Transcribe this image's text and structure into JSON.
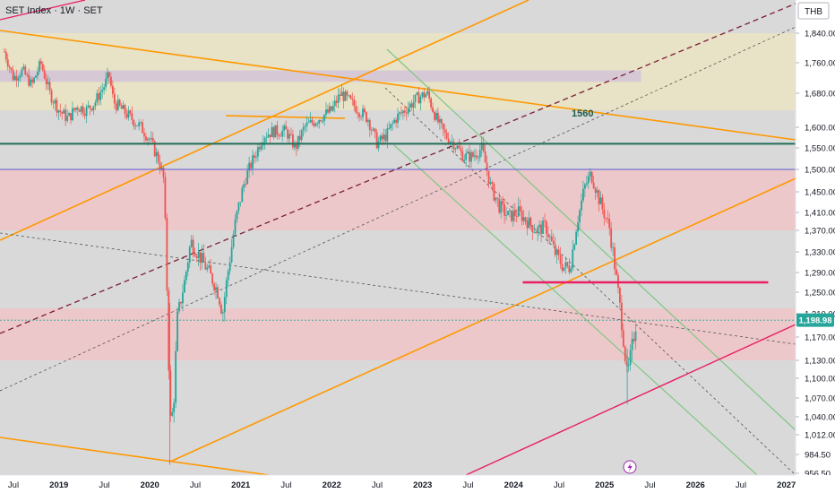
{
  "header": {
    "title": "SET Index · 1W · SET",
    "currency": "THB"
  },
  "last_price": "1,198.98",
  "annotation_1560": "1560",
  "colors": {
    "up": "#26a69a",
    "down": "#ef5350",
    "orange": "#ff9800",
    "red_line": "#e91e63",
    "green_line": "#1e6e58",
    "channel": "#81c784",
    "tag": "#26a69a"
  },
  "chart_data": {
    "type": "candlestick",
    "title": "SET Index · 1W · SET",
    "y_ticks": [
      "1,840.00",
      "1,760.00",
      "1,680.00",
      "1,600.00",
      "1,550.00",
      "1,500.00",
      "1,450.00",
      "1,410.00",
      "1,370.00",
      "1,330.00",
      "1,290.00",
      "1,250.00",
      "1,210.00",
      "1,170.00",
      "1,130.00",
      "1,100.00",
      "1,070.00",
      "1,040.00",
      "1,012.00",
      "984.50",
      "956.50"
    ],
    "y_tick_values": [
      1840,
      1760,
      1680,
      1600,
      1550,
      1500,
      1450,
      1410,
      1370,
      1330,
      1290,
      1250,
      1210,
      1170,
      1130,
      1100,
      1070,
      1040,
      1012,
      984.5,
      956.5
    ],
    "x_ticks": [
      {
        "label": "Jul",
        "year": false,
        "t": 2018.5
      },
      {
        "label": "2019",
        "year": true,
        "t": 2019.0
      },
      {
        "label": "Jul",
        "year": false,
        "t": 2019.5
      },
      {
        "label": "2020",
        "year": true,
        "t": 2020.0
      },
      {
        "label": "Jul",
        "year": false,
        "t": 2020.5
      },
      {
        "label": "2021",
        "year": true,
        "t": 2021.0
      },
      {
        "label": "Jul",
        "year": false,
        "t": 2021.5
      },
      {
        "label": "2022",
        "year": true,
        "t": 2022.0
      },
      {
        "label": "Jul",
        "year": false,
        "t": 2022.5
      },
      {
        "label": "2023",
        "year": true,
        "t": 2023.0
      },
      {
        "label": "Jul",
        "year": false,
        "t": 2023.5
      },
      {
        "label": "2024",
        "year": true,
        "t": 2024.0
      },
      {
        "label": "Jul",
        "year": false,
        "t": 2024.5
      },
      {
        "label": "2025",
        "year": true,
        "t": 2025.0
      },
      {
        "label": "Jul",
        "year": false,
        "t": 2025.5
      },
      {
        "label": "2026",
        "year": true,
        "t": 2026.0
      },
      {
        "label": "Jul",
        "year": false,
        "t": 2026.5
      },
      {
        "label": "2027",
        "year": true,
        "t": 2027.0
      }
    ],
    "close_path": [
      [
        2018.4,
        1790
      ],
      [
        2018.5,
        1720
      ],
      [
        2018.6,
        1740
      ],
      [
        2018.7,
        1700
      ],
      [
        2018.8,
        1760
      ],
      [
        2018.9,
        1680
      ],
      [
        2019.0,
        1640
      ],
      [
        2019.1,
        1620
      ],
      [
        2019.2,
        1650
      ],
      [
        2019.3,
        1640
      ],
      [
        2019.4,
        1660
      ],
      [
        2019.5,
        1700
      ],
      [
        2019.55,
        1730
      ],
      [
        2019.6,
        1660
      ],
      [
        2019.75,
        1630
      ],
      [
        2019.9,
        1600
      ],
      [
        2020.0,
        1570
      ],
      [
        2020.1,
        1520
      ],
      [
        2020.15,
        1480
      ],
      [
        2020.18,
        1330
      ],
      [
        2020.2,
        1160
      ],
      [
        2020.23,
        1020
      ],
      [
        2020.27,
        1080
      ],
      [
        2020.3,
        1200
      ],
      [
        2020.38,
        1270
      ],
      [
        2020.45,
        1350
      ],
      [
        2020.55,
        1320
      ],
      [
        2020.65,
        1290
      ],
      [
        2020.75,
        1250
      ],
      [
        2020.8,
        1210
      ],
      [
        2020.85,
        1280
      ],
      [
        2020.95,
        1400
      ],
      [
        2021.05,
        1480
      ],
      [
        2021.15,
        1530
      ],
      [
        2021.25,
        1580
      ],
      [
        2021.35,
        1590
      ],
      [
        2021.5,
        1590
      ],
      [
        2021.6,
        1550
      ],
      [
        2021.7,
        1600
      ],
      [
        2021.85,
        1620
      ],
      [
        2022.0,
        1640
      ],
      [
        2022.1,
        1680
      ],
      [
        2022.2,
        1660
      ],
      [
        2022.3,
        1640
      ],
      [
        2022.4,
        1620
      ],
      [
        2022.5,
        1560
      ],
      [
        2022.6,
        1580
      ],
      [
        2022.7,
        1620
      ],
      [
        2022.8,
        1640
      ],
      [
        2022.95,
        1670
      ],
      [
        2023.05,
        1680
      ],
      [
        2023.15,
        1620
      ],
      [
        2023.25,
        1580
      ],
      [
        2023.35,
        1560
      ],
      [
        2023.45,
        1530
      ],
      [
        2023.55,
        1530
      ],
      [
        2023.65,
        1550
      ],
      [
        2023.75,
        1460
      ],
      [
        2023.85,
        1420
      ],
      [
        2023.95,
        1400
      ],
      [
        2024.05,
        1410
      ],
      [
        2024.15,
        1390
      ],
      [
        2024.25,
        1370
      ],
      [
        2024.35,
        1380
      ],
      [
        2024.45,
        1330
      ],
      [
        2024.55,
        1300
      ],
      [
        2024.62,
        1300
      ],
      [
        2024.7,
        1390
      ],
      [
        2024.78,
        1460
      ],
      [
        2024.85,
        1490
      ],
      [
        2024.95,
        1430
      ],
      [
        2025.05,
        1380
      ],
      [
        2025.1,
        1320
      ],
      [
        2025.15,
        1250
      ],
      [
        2025.2,
        1180
      ],
      [
        2025.25,
        1100
      ],
      [
        2025.3,
        1150
      ],
      [
        2025.35,
        1199
      ]
    ],
    "zones": [
      {
        "name": "yellow",
        "from": 1640,
        "to": 1840,
        "t0": 2018.3,
        "t1": 2027.2
      },
      {
        "name": "purple",
        "from": 1710,
        "to": 1740,
        "t0": 2018.3,
        "t1": 2025.4
      },
      {
        "name": "red-upper",
        "from": 1370,
        "to": 1500,
        "t0": 2018.3,
        "t1": 2027.2
      },
      {
        "name": "red-lower",
        "from": 1130,
        "to": 1220,
        "t0": 2018.3,
        "t1": 2027.2
      }
    ],
    "levels": [
      {
        "name": "green-horizontal",
        "value": 1560
      },
      {
        "name": "blue-horizontal",
        "value": 1500
      },
      {
        "name": "red-horizontal",
        "value": 1270,
        "t0": 2024.1,
        "t1": 2026.8
      }
    ]
  }
}
